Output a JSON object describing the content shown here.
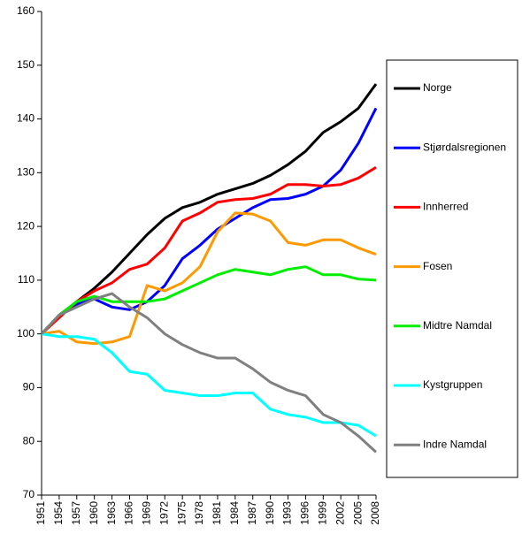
{
  "chart_data": {
    "type": "line",
    "x": [
      1951,
      1954,
      1957,
      1960,
      1963,
      1966,
      1969,
      1972,
      1975,
      1978,
      1981,
      1984,
      1987,
      1990,
      1993,
      1996,
      1999,
      2002,
      2005,
      2008
    ],
    "xlim": [
      1951,
      2008
    ],
    "xticks": [
      1951,
      1954,
      1957,
      1960,
      1963,
      1966,
      1969,
      1972,
      1975,
      1978,
      1981,
      1984,
      1987,
      1990,
      1993,
      1996,
      1999,
      2002,
      2005,
      2008
    ],
    "ylim": [
      70,
      160
    ],
    "yticks": [
      70,
      80,
      90,
      100,
      110,
      120,
      130,
      140,
      150,
      160
    ],
    "grid": false,
    "legend": "right",
    "series": [
      {
        "name": "Norge",
        "color": "#000000",
        "values": [
          100,
          103.5,
          106,
          108.5,
          111.5,
          115,
          118.5,
          121.5,
          123.5,
          124.5,
          126,
          127,
          128,
          129.5,
          131.5,
          134,
          137.5,
          139.5,
          142,
          146.5
        ]
      },
      {
        "name": "Stjørdalsregionen",
        "color": "#0000ff",
        "values": [
          100,
          103.5,
          105.5,
          106.5,
          105,
          104.5,
          106,
          109,
          114,
          116.5,
          119.5,
          121.5,
          123.5,
          125,
          125.2,
          126,
          127.5,
          130.5,
          135.5,
          142
        ]
      },
      {
        "name": "Innherred",
        "color": "#ff0000",
        "values": [
          100,
          103,
          106,
          108,
          109.5,
          112,
          113,
          116,
          121,
          122.5,
          124.5,
          125,
          125.2,
          126,
          127.8,
          127.8,
          127.5,
          127.8,
          129,
          131
        ]
      },
      {
        "name": "Fosen",
        "color": "#ff9900",
        "values": [
          100,
          100.5,
          98.5,
          98.2,
          98.5,
          99.5,
          109,
          108,
          109.5,
          112.5,
          119,
          122.5,
          122.3,
          121,
          117,
          116.5,
          117.5,
          117.5,
          116,
          114.8
        ]
      },
      {
        "name": "Midtre Namdal",
        "color": "#00ee00",
        "values": [
          100,
          103.5,
          106,
          107,
          106,
          106,
          106,
          106.5,
          108,
          109.5,
          111,
          112,
          111.5,
          111,
          112,
          112.5,
          111,
          111,
          110.2,
          110
        ]
      },
      {
        "name": "Kystgruppen",
        "color": "#00ffff",
        "values": [
          100,
          99.5,
          99.5,
          99,
          96.5,
          93,
          92.5,
          89.5,
          89,
          88.5,
          88.5,
          89,
          89,
          86,
          85,
          84.5,
          83.5,
          83.5,
          83,
          81
        ]
      },
      {
        "name": "Indre Namdal",
        "color": "#808080",
        "values": [
          100,
          103.5,
          105,
          106.5,
          107.5,
          105,
          103,
          100,
          98,
          96.5,
          95.5,
          95.5,
          93.5,
          91,
          89.5,
          88.5,
          85,
          83.5,
          81,
          78
        ]
      }
    ]
  }
}
